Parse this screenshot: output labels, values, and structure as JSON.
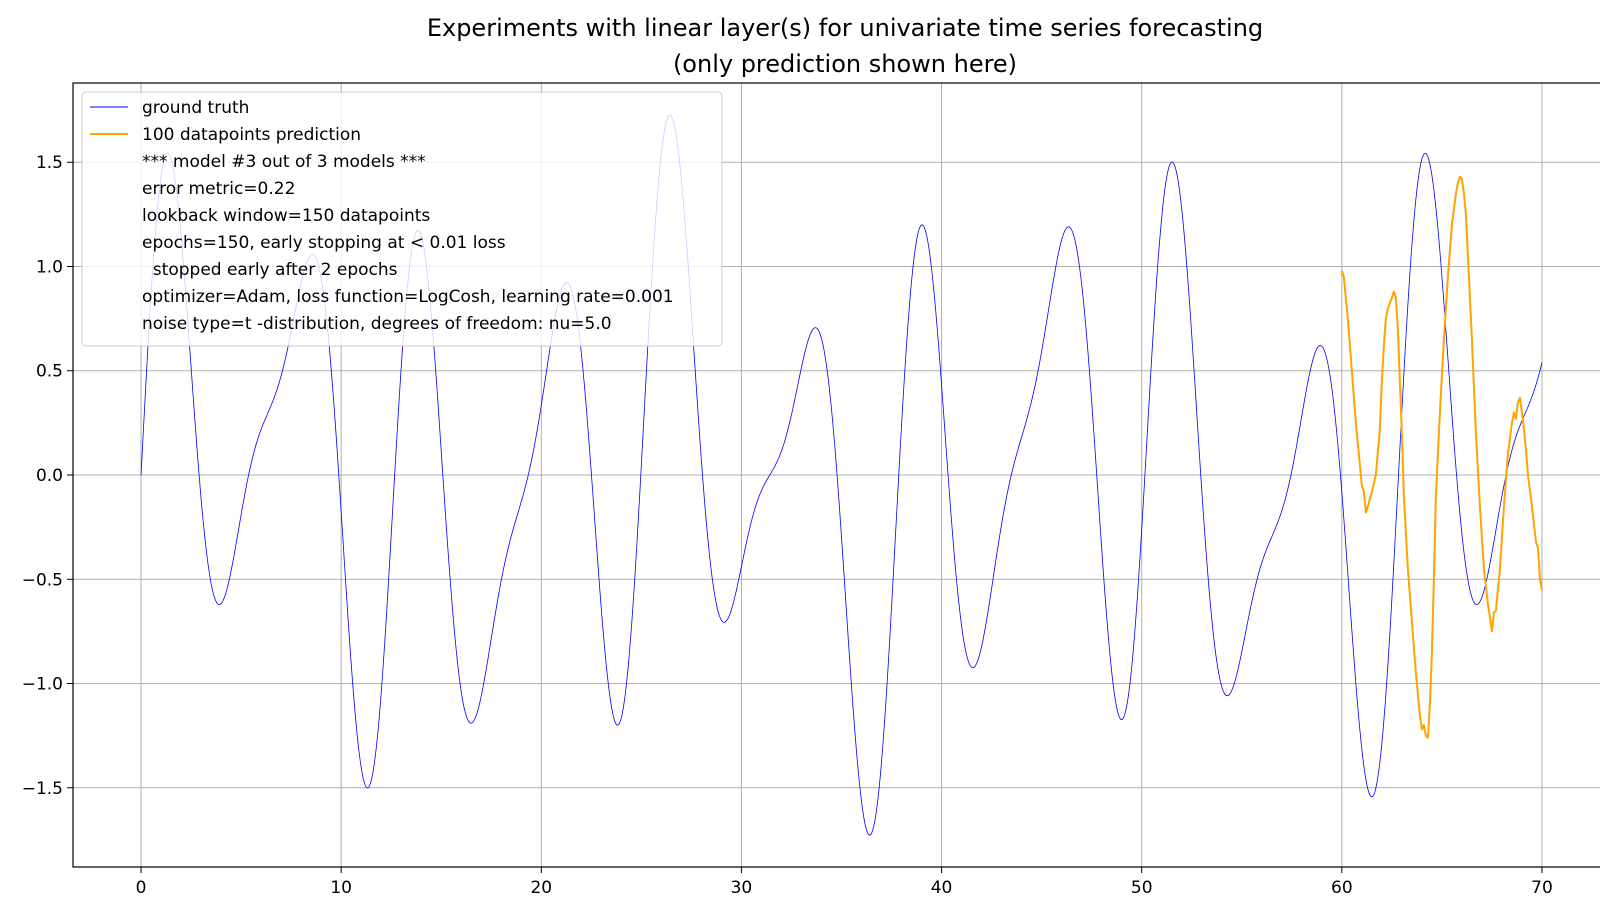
{
  "chart_data": {
    "type": "line",
    "title": "Experiments with linear layer(s) for univariate time series forecasting",
    "subtitle": "(only prediction shown here)",
    "xlabel": "",
    "ylabel": "",
    "xlim": [
      -3.4,
      73.4
    ],
    "ylim": [
      -1.88,
      1.88
    ],
    "x_ticks": [
      0,
      10,
      20,
      30,
      40,
      50,
      60,
      70
    ],
    "y_ticks": [
      -1.5,
      -1.0,
      -0.5,
      0.0,
      0.5,
      1.0,
      1.5
    ],
    "y_tick_labels": [
      "−1.5",
      "−1.0",
      "−0.5",
      "0.0",
      "0.5",
      "1.0",
      "1.5"
    ],
    "grid": true,
    "legend_position": "top-left",
    "series": [
      {
        "name": "ground truth",
        "color": "#0000ff",
        "function": "y = sin(x) + 0.5*sin(1.5x) + 0.3*sin(0.3x)",
        "x_range": [
          0,
          70
        ],
        "samples": 1400
      },
      {
        "name": "100 datapoints prediction",
        "color": "#ffa500",
        "x": [
          60.0,
          60.1,
          60.3,
          60.5,
          60.7,
          60.9,
          61.0,
          61.1,
          61.2,
          61.3,
          61.5,
          61.7,
          61.9,
          62.0,
          62.1,
          62.2,
          62.3,
          62.5,
          62.6,
          62.7,
          62.8,
          62.9,
          63.0,
          63.1,
          63.3,
          63.5,
          63.7,
          63.9,
          64.0,
          64.1,
          64.2,
          64.3,
          64.4,
          64.5,
          64.6,
          64.7,
          64.9,
          65.1,
          65.3,
          65.5,
          65.7,
          65.8,
          65.9,
          66.0,
          66.1,
          66.2,
          66.3,
          66.5,
          66.7,
          66.9,
          67.1,
          67.3,
          67.4,
          67.5,
          67.6,
          67.7,
          67.9,
          68.1,
          68.3,
          68.5,
          68.6,
          68.7,
          68.8,
          68.9,
          69.0,
          69.1,
          69.2,
          69.3,
          69.5,
          69.7,
          69.8,
          69.9,
          70.0
        ],
        "y": [
          0.98,
          0.95,
          0.75,
          0.5,
          0.25,
          0.05,
          -0.05,
          -0.08,
          -0.18,
          -0.15,
          -0.08,
          0.0,
          0.22,
          0.45,
          0.62,
          0.75,
          0.8,
          0.85,
          0.88,
          0.85,
          0.7,
          0.45,
          0.2,
          -0.1,
          -0.45,
          -0.7,
          -0.95,
          -1.15,
          -1.22,
          -1.2,
          -1.25,
          -1.26,
          -1.1,
          -0.85,
          -0.5,
          -0.1,
          0.3,
          0.65,
          0.95,
          1.2,
          1.35,
          1.4,
          1.43,
          1.42,
          1.35,
          1.25,
          1.05,
          0.65,
          0.2,
          -0.15,
          -0.45,
          -0.62,
          -0.68,
          -0.75,
          -0.66,
          -0.65,
          -0.45,
          -0.15,
          0.1,
          0.25,
          0.3,
          0.27,
          0.35,
          0.37,
          0.3,
          0.22,
          0.12,
          0.0,
          -0.15,
          -0.32,
          -0.35,
          -0.5,
          -0.55
        ]
      }
    ],
    "legend_text_lines": [
      "*** model #3 out of 3 models ***",
      "error metric=0.22",
      "lookback window=150 datapoints",
      "epochs=150, early stopping at < 0.01 loss",
      "  stopped early after 2 epochs",
      "optimizer=Adam, loss function=LogCosh, learning rate=0.001",
      "noise type=t -distribution, degrees of freedom: nu=5.0"
    ]
  }
}
